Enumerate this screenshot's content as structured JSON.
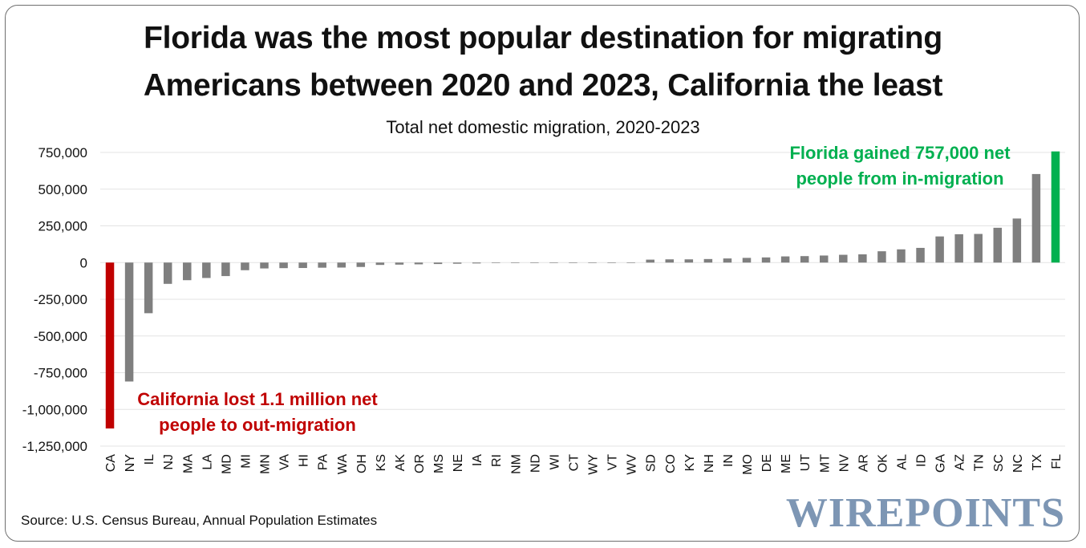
{
  "title_line1": "Florida was the most popular destination for migrating",
  "title_line2": "Americans between 2020 and 2023, California the least",
  "subtitle": "Total net domestic migration, 2020-2023",
  "source": "Source: U.S. Census Bureau, Annual Population Estimates",
  "logo": "WIREPOINTS",
  "colors": {
    "default_bar": "#7f7f7f",
    "lowest_bar": "#c00000",
    "highest_bar": "#00b050",
    "grid": "#e3e3e3",
    "text": "#111111"
  },
  "chart_data": {
    "type": "bar",
    "title": "Total net domestic migration, 2020-2023",
    "xlabel": "",
    "ylabel": "",
    "ylim": [
      -1250000,
      750000
    ],
    "yticks": [
      750000,
      500000,
      250000,
      0,
      -250000,
      -500000,
      -750000,
      -1000000,
      -1250000
    ],
    "ytick_labels": [
      "750,000",
      "500,000",
      "250,000",
      "0",
      "-250,000",
      "-500,000",
      "-750,000",
      "-1,000,000",
      "-1,250,000"
    ],
    "grid": true,
    "categories": [
      "CA",
      "NY",
      "IL",
      "NJ",
      "MA",
      "LA",
      "MD",
      "MI",
      "MN",
      "VA",
      "HI",
      "PA",
      "WA",
      "OH",
      "KS",
      "AK",
      "OR",
      "MS",
      "NE",
      "IA",
      "RI",
      "NM",
      "ND",
      "WI",
      "CT",
      "WY",
      "VT",
      "WV",
      "SD",
      "CO",
      "KY",
      "NH",
      "IN",
      "MO",
      "DE",
      "ME",
      "UT",
      "MT",
      "NV",
      "AR",
      "OK",
      "AL",
      "ID",
      "GA",
      "AZ",
      "TN",
      "SC",
      "NC",
      "TX",
      "FL"
    ],
    "values": [
      -1130000,
      -810000,
      -345000,
      -145000,
      -120000,
      -105000,
      -92000,
      -52000,
      -40000,
      -38000,
      -37000,
      -35000,
      -34000,
      -30000,
      -16000,
      -14000,
      -12000,
      -10000,
      -8000,
      -6000,
      -3000,
      -2000,
      -1500,
      -1000,
      -800,
      -500,
      -300,
      -200,
      20000,
      22000,
      22000,
      24000,
      28000,
      32000,
      35000,
      42000,
      44000,
      48000,
      53000,
      56000,
      77000,
      90000,
      100000,
      178000,
      193000,
      195000,
      237000,
      300000,
      603000,
      757000
    ],
    "annotations": [
      {
        "name": "california-annotation",
        "color": "#c00000",
        "lines": [
          "California lost 1.1 million net",
          "people to out-migration"
        ]
      },
      {
        "name": "florida-annotation",
        "color": "#00b050",
        "lines": [
          "Florida gained 757,000 net",
          "people from in-migration"
        ]
      }
    ]
  }
}
